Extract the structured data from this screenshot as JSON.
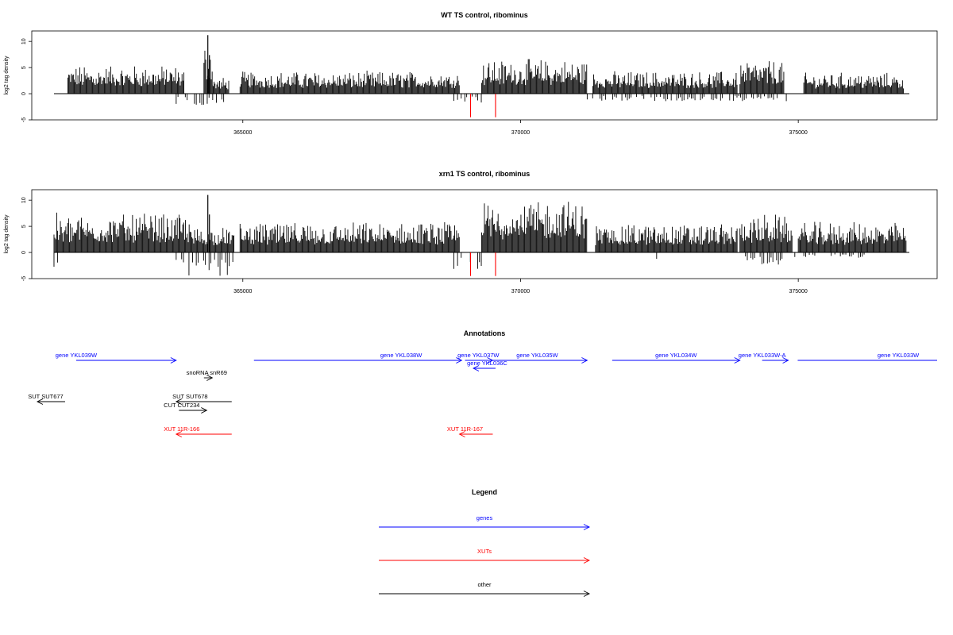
{
  "chart_data": [
    {
      "type": "bar",
      "title": "WT TS control, ribominus",
      "ylabel": "log2 tag density",
      "xlabel": "",
      "xlim": [
        361200,
        377500
      ],
      "ylim": [
        -5,
        12
      ],
      "x_ticks": [
        365000,
        370000,
        375000
      ],
      "y_ticks": [
        -5,
        0,
        5,
        10
      ],
      "x_tick_labels": [
        "365000",
        "370000",
        "375000"
      ],
      "y_tick_labels": [
        "-5",
        "0",
        "5",
        "10"
      ],
      "baseline": [
        361600,
        377000
      ],
      "highlight_color": "#ff0000",
      "highlight_positions": [
        369100,
        369550
      ],
      "highlight_values": [
        -4.5,
        -4.5
      ],
      "positive_segments": [
        {
          "start": 361850,
          "end": 363950,
          "level": 3.8
        },
        {
          "start": 364300,
          "end": 364450,
          "level": 7.0
        },
        {
          "start": 364450,
          "end": 364750,
          "level": 2.2
        },
        {
          "start": 364950,
          "end": 368900,
          "level": 3.0
        },
        {
          "start": 369300,
          "end": 371200,
          "level": 4.6
        },
        {
          "start": 371300,
          "end": 373900,
          "level": 3.0
        },
        {
          "start": 373950,
          "end": 374750,
          "level": 4.5
        },
        {
          "start": 375100,
          "end": 376900,
          "level": 2.8
        }
      ],
      "peak_values": [
        {
          "x": 364370,
          "value": 11.2
        }
      ],
      "negative_segments": [
        {
          "start": 363800,
          "end": 364700,
          "level": -2.0
        },
        {
          "start": 368800,
          "end": 369300,
          "level": -1.6
        },
        {
          "start": 371200,
          "end": 374800,
          "level": -1.3
        }
      ]
    },
    {
      "type": "bar",
      "title": "xrn1 TS control, ribominus",
      "ylabel": "log2 tag density",
      "xlabel": "",
      "xlim": [
        361200,
        377500
      ],
      "ylim": [
        -5,
        12
      ],
      "x_ticks": [
        365000,
        370000,
        375000
      ],
      "y_ticks": [
        -5,
        0,
        5,
        10
      ],
      "x_tick_labels": [
        "365000",
        "370000",
        "375000"
      ],
      "y_tick_labels": [
        "-5",
        "0",
        "5",
        "10"
      ],
      "baseline": [
        361600,
        377000
      ],
      "highlight_color": "#ff0000",
      "highlight_positions": [
        369100,
        369550
      ],
      "highlight_values": [
        -4.5,
        -4.5
      ],
      "positive_segments": [
        {
          "start": 361600,
          "end": 364050,
          "level": 5.2
        },
        {
          "start": 364050,
          "end": 364850,
          "level": 3.5
        },
        {
          "start": 364950,
          "end": 368900,
          "level": 4.0
        },
        {
          "start": 369300,
          "end": 371200,
          "level": 7.0
        },
        {
          "start": 371350,
          "end": 373900,
          "level": 3.8
        },
        {
          "start": 373950,
          "end": 374900,
          "level": 5.0
        },
        {
          "start": 375000,
          "end": 376950,
          "level": 4.0
        }
      ],
      "peak_values": [
        {
          "x": 364370,
          "value": 11.0
        }
      ],
      "negative_segments": [
        {
          "start": 361600,
          "end": 361700,
          "level": -3.0
        },
        {
          "start": 363800,
          "end": 364850,
          "level": -4.2
        },
        {
          "start": 368800,
          "end": 369300,
          "level": -3.0
        },
        {
          "start": 372450,
          "end": 372500,
          "level": -2.3
        },
        {
          "start": 374050,
          "end": 374950,
          "level": -2.5
        },
        {
          "start": 375100,
          "end": 376300,
          "level": -1.0
        }
      ]
    }
  ],
  "annotations": {
    "title": "Annotations",
    "features": [
      {
        "label": "gene YKL039W",
        "color": "#0000ff",
        "strand": "+",
        "start": 362000,
        "end": 363800,
        "row": 0,
        "label_x": 362000
      },
      {
        "label": "gene YKL038W",
        "color": "#0000ff",
        "strand": "+",
        "start": 365200,
        "end": 368940,
        "row": 0,
        "label_x": 367850
      },
      {
        "label": "gene YKL037W",
        "color": "#0000ff",
        "strand": "+",
        "start": 369000,
        "end": 369500,
        "row": 0,
        "label_x": 369240
      },
      {
        "label": "gene YKL035W",
        "color": "#0000ff",
        "strand": "+",
        "start": 369500,
        "end": 371200,
        "row": 0,
        "label_x": 370300
      },
      {
        "label": "gene YKL036C",
        "color": "#0000ff",
        "strand": "-",
        "start": 369150,
        "end": 369550,
        "row": 1,
        "label_x": 369400
      },
      {
        "label": "gene YKL034W",
        "color": "#0000ff",
        "strand": "+",
        "start": 371650,
        "end": 373950,
        "row": 0,
        "label_x": 372800
      },
      {
        "label": "gene YKL033W-A",
        "color": "#0000ff",
        "strand": "+",
        "start": 374350,
        "end": 374820,
        "row": 0,
        "label_x": 374350
      },
      {
        "label": "gene YKL033W",
        "color": "#0000ff",
        "strand": "+",
        "start": 374990,
        "end": 377550,
        "row": 0,
        "label_x": 376800
      },
      {
        "label": "snoRNA snR69",
        "color": "#000000",
        "strand": "+",
        "start": 364300,
        "end": 364450,
        "row": 2,
        "label_x": 364350
      },
      {
        "label": "SUT SUT677",
        "color": "#000000",
        "strand": "-",
        "start": 361300,
        "end": 361800,
        "row": 3,
        "label_x": 361450
      },
      {
        "label": "SUT SUT678",
        "color": "#000000",
        "strand": "-",
        "start": 363800,
        "end": 364800,
        "row": 3,
        "label_x": 364050
      },
      {
        "label": "CUT CUT234",
        "color": "#000000",
        "strand": "+",
        "start": 363850,
        "end": 364350,
        "row": 4,
        "label_x": 363900
      },
      {
        "label": "XUT 11R-166",
        "color": "#ff0000",
        "strand": "-",
        "start": 363800,
        "end": 364800,
        "row": 5,
        "label_x": 363900
      },
      {
        "label": "XUT 11R-167",
        "color": "#ff0000",
        "strand": "-",
        "start": 368900,
        "end": 369500,
        "row": 5,
        "label_x": 369000
      }
    ]
  },
  "legend": {
    "title": "Legend",
    "items": [
      {
        "label": "genes",
        "color": "#0000ff"
      },
      {
        "label": "XUTs",
        "color": "#ff0000"
      },
      {
        "label": "other",
        "color": "#000000"
      }
    ]
  }
}
